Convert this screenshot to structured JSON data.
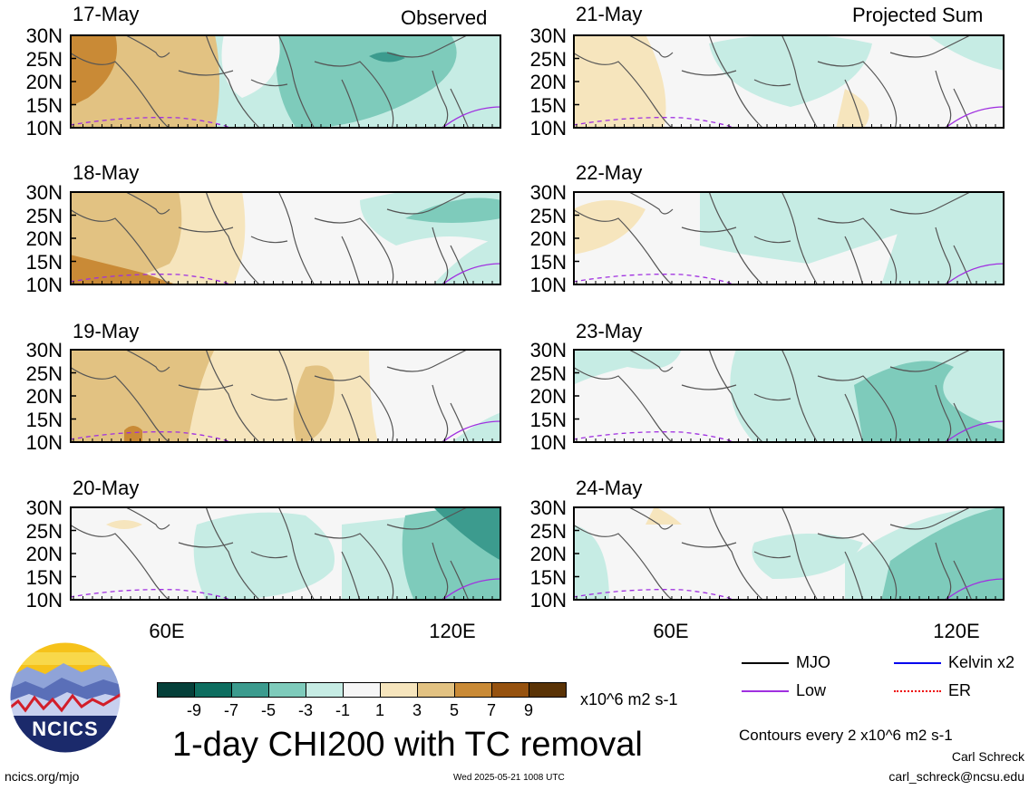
{
  "headers": {
    "observed": "Observed",
    "projected": "Projected Sum"
  },
  "lat_labels": [
    "30N",
    "25N",
    "20N",
    "15N",
    "10N"
  ],
  "lon_labels": [
    "60E",
    "120E"
  ],
  "panels": [
    {
      "id": "p17",
      "date": "17-May",
      "col": "left"
    },
    {
      "id": "p18",
      "date": "18-May",
      "col": "left"
    },
    {
      "id": "p19",
      "date": "19-May",
      "col": "left"
    },
    {
      "id": "p20",
      "date": "20-May",
      "col": "left"
    },
    {
      "id": "p21",
      "date": "21-May",
      "col": "right"
    },
    {
      "id": "p22",
      "date": "22-May",
      "col": "right"
    },
    {
      "id": "p23",
      "date": "23-May",
      "col": "right"
    },
    {
      "id": "p24",
      "date": "24-May",
      "col": "right"
    }
  ],
  "colorbar": {
    "labels": [
      "-9",
      "-7",
      "-5",
      "-3",
      "-1",
      "1",
      "3",
      "5",
      "7",
      "9"
    ],
    "colors": [
      "#05403a",
      "#0e6e60",
      "#3c9b8e",
      "#7ecbbb",
      "#c6ece4",
      "#f6f6f6",
      "#f6e5bd",
      "#e2c282",
      "#c98a36",
      "#96520f",
      "#5a3306"
    ],
    "units": "x10^6 m2 s-1"
  },
  "title": "1-day CHI200 with TC removal",
  "legend": [
    {
      "label": "MJO",
      "color": "#000000"
    },
    {
      "label": "Kelvin x2",
      "color": "#0000ee"
    },
    {
      "label": "Low",
      "color": "#a030e0"
    },
    {
      "label": "ER",
      "color": "#ee0000"
    }
  ],
  "contours_note": "Contours every 2 x10^6 m2 s-1",
  "author": "Carl Schreck",
  "email": "carl_schreck@ncsu.edu",
  "site": "ncics.org/mjo",
  "timestamp": "Wed 2025-05-21 1008 UTC",
  "logo_text": "NCICS"
}
